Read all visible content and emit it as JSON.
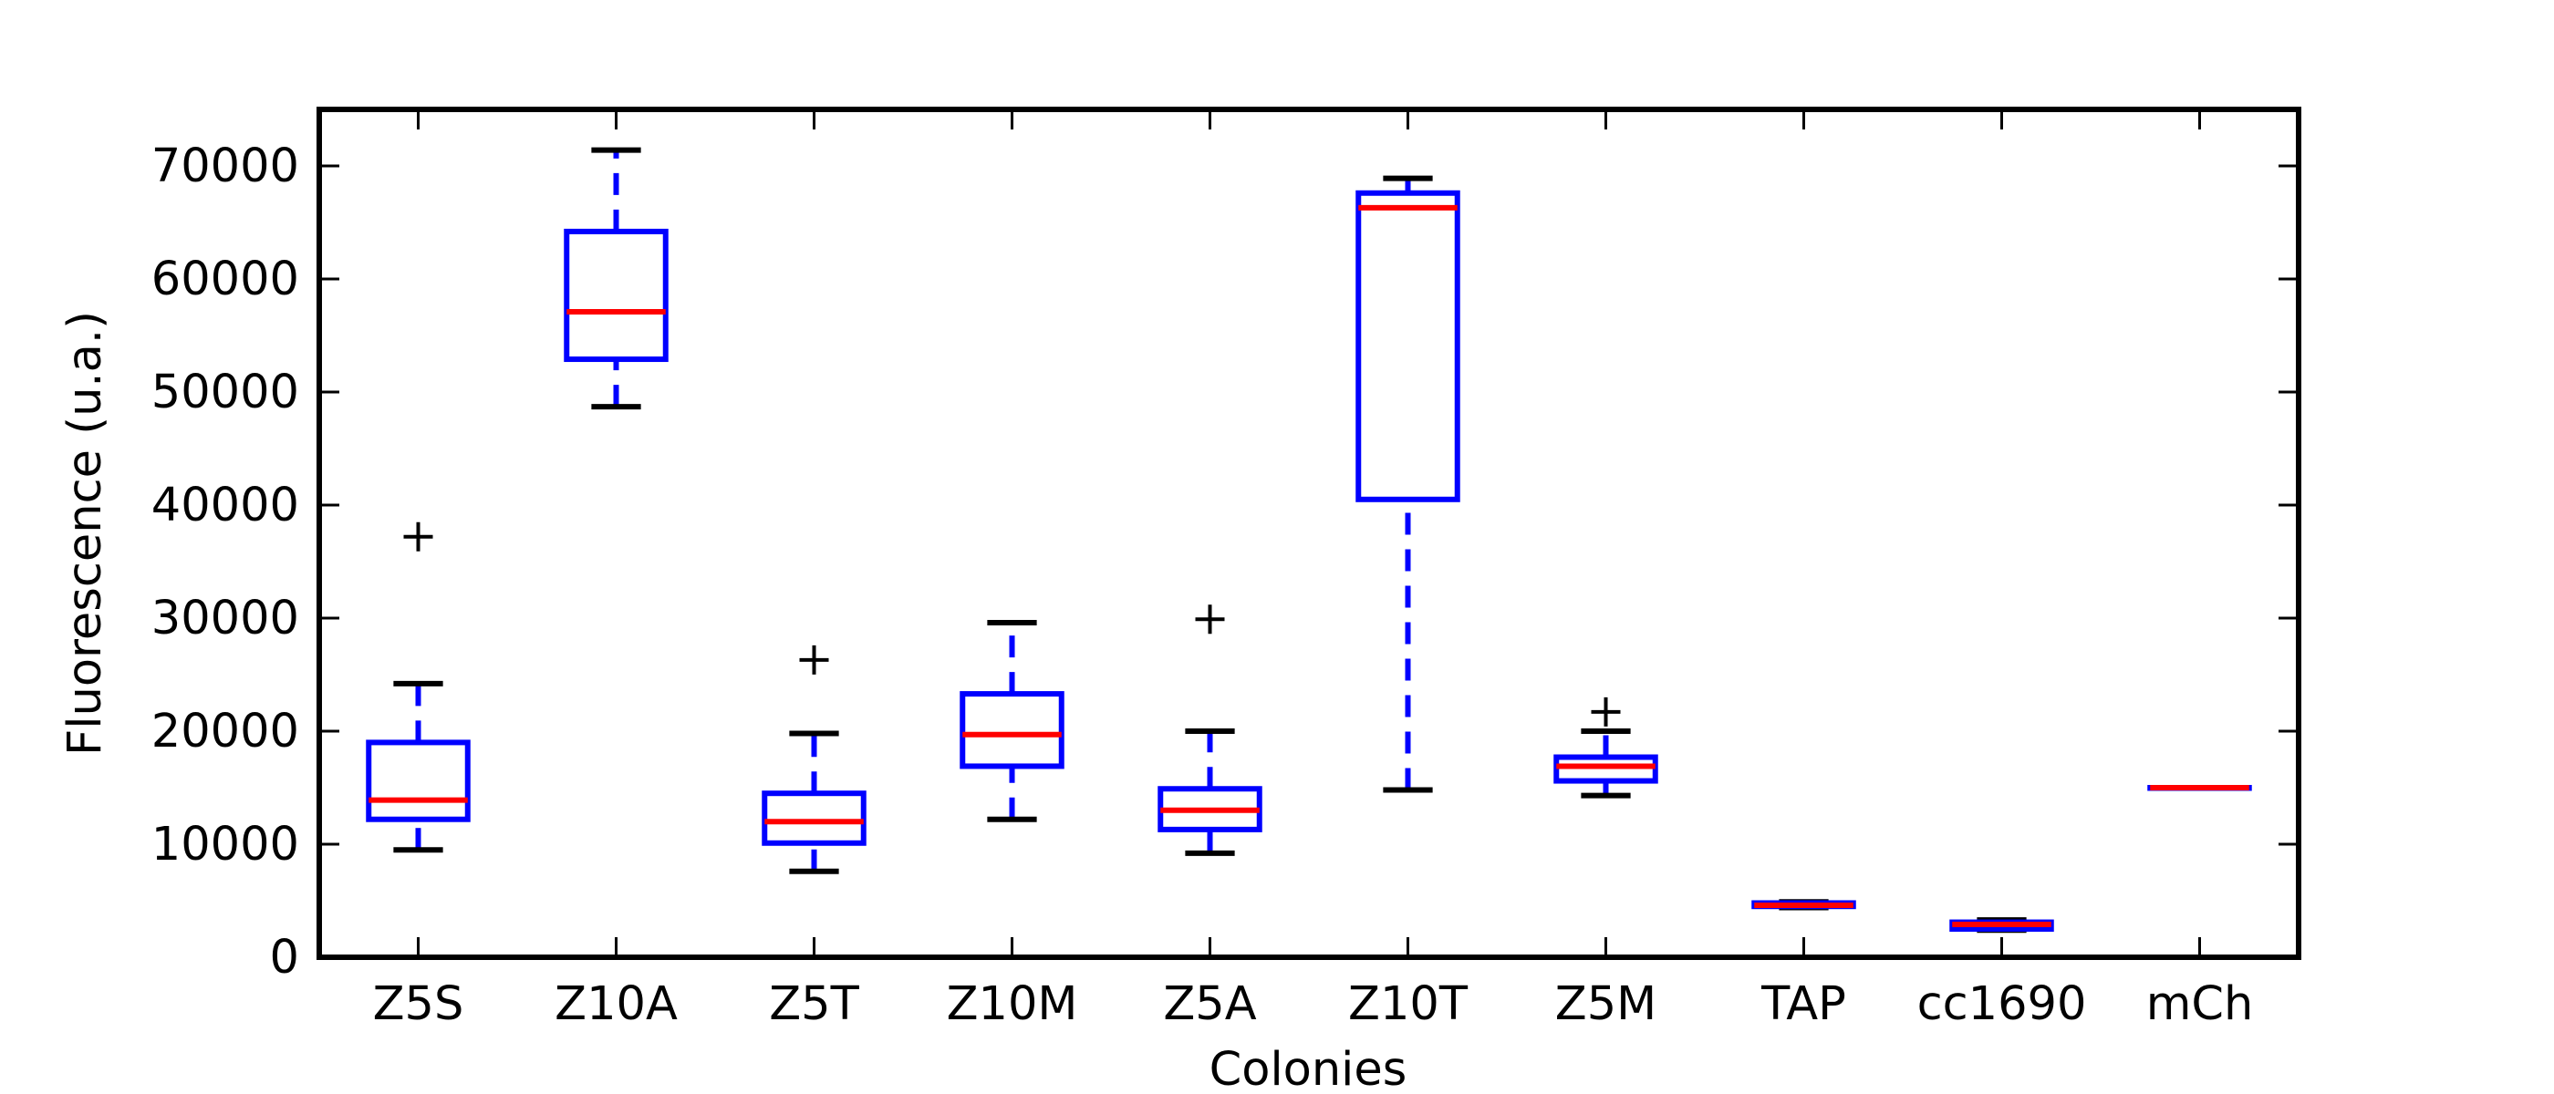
{
  "chart_data": {
    "type": "box",
    "title": "",
    "xlabel": "Colonies",
    "ylabel": "Fluorescence (u.a.)",
    "ylim": [
      0,
      75000
    ],
    "yticks": [
      0,
      10000,
      20000,
      30000,
      40000,
      50000,
      60000,
      70000
    ],
    "grid": false,
    "colors": {
      "box": "#0000ff",
      "whisker": "#0000ff",
      "cap": "#000000",
      "median": "#ff0000",
      "flier": "#000000"
    },
    "categories": [
      "Z5S",
      "Z10A",
      "Z5T",
      "Z10M",
      "Z5A",
      "Z10T",
      "Z5M",
      "TAP",
      "cc1690",
      "mCh"
    ],
    "boxes": [
      {
        "label": "Z5S",
        "whislo": 9500,
        "q1": 12200,
        "med": 13900,
        "q3": 19000,
        "whishi": 24200,
        "fliers": [
          37200
        ]
      },
      {
        "label": "Z10A",
        "whislo": 48700,
        "q1": 52900,
        "med": 57100,
        "q3": 64200,
        "whishi": 71400,
        "fliers": []
      },
      {
        "label": "Z5T",
        "whislo": 7600,
        "q1": 10100,
        "med": 12000,
        "q3": 14500,
        "whishi": 19800,
        "fliers": [
          26300
        ]
      },
      {
        "label": "Z10M",
        "whislo": 12200,
        "q1": 16900,
        "med": 19700,
        "q3": 23300,
        "whishi": 29600,
        "fliers": []
      },
      {
        "label": "Z5A",
        "whislo": 9200,
        "q1": 11300,
        "med": 13000,
        "q3": 14900,
        "whishi": 20000,
        "fliers": [
          29900
        ]
      },
      {
        "label": "Z10T",
        "whislo": 14800,
        "q1": 40500,
        "med": 66300,
        "q3": 67600,
        "whishi": 68900,
        "fliers": []
      },
      {
        "label": "Z5M",
        "whislo": 14300,
        "q1": 15600,
        "med": 16900,
        "q3": 17700,
        "whishi": 20000,
        "fliers": [
          21700
        ]
      },
      {
        "label": "TAP",
        "whislo": 4400,
        "q1": 4500,
        "med": 4600,
        "q3": 4800,
        "whishi": 4900,
        "fliers": []
      },
      {
        "label": "cc1690",
        "whislo": 2400,
        "q1": 2500,
        "med": 2900,
        "q3": 3100,
        "whishi": 3300,
        "fliers": []
      },
      {
        "label": "mCh",
        "whislo": 15000,
        "q1": 15000,
        "med": 15000,
        "q3": 15000,
        "whishi": 15000,
        "fliers": []
      }
    ]
  }
}
